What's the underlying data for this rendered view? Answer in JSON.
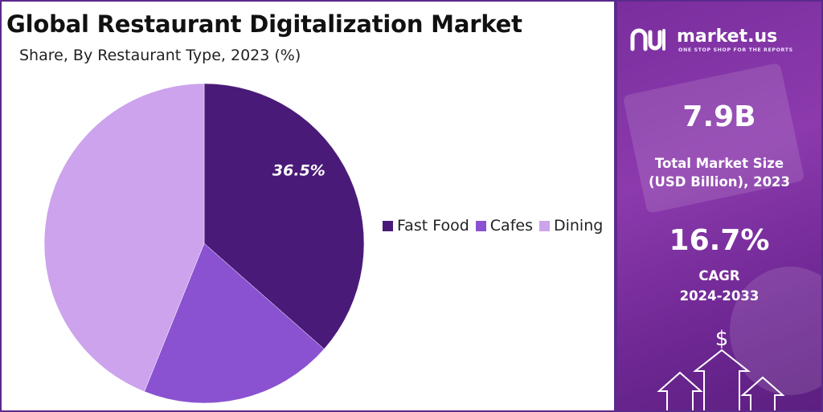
{
  "chart_data": {
    "type": "pie",
    "title": "Global Restaurant Digitalization Market",
    "subtitle": "Share, By Restaurant Type, 2023 (%)",
    "categories": [
      "Fast Food",
      "Cafes",
      "Dining"
    ],
    "values": [
      36.5,
      19.6,
      43.9
    ],
    "colors": [
      "#4a1a78",
      "#8a52d1",
      "#cca3ec"
    ],
    "data_labels": [
      {
        "category": "Fast Food",
        "text": "36.5%"
      }
    ],
    "legend_position": "right"
  },
  "panel": {
    "brand_name": "market.us",
    "brand_tagline": "ONE STOP SHOP FOR THE REPORTS",
    "market_size_value": "7.9B",
    "market_size_label_line1": "Total Market Size",
    "market_size_label_line2": "(USD Billion), 2023",
    "cagr_value": "16.7%",
    "cagr_label_line1": "CAGR",
    "cagr_label_line2": "2024-2033",
    "dollar_symbol": "$",
    "icons": [
      "market-us-logo-icon",
      "dollar-icon",
      "up-arrow-icon"
    ]
  }
}
